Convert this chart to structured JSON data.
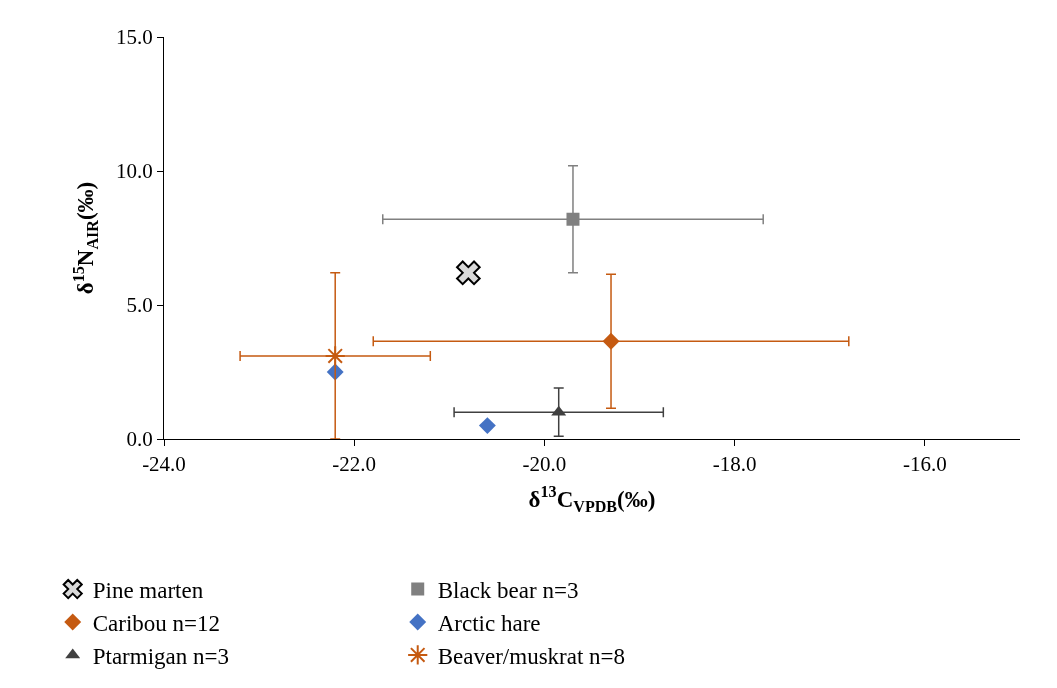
{
  "chart_data": {
    "type": "scatter",
    "xlabel": "δ$^{13}$C$_{VPDB}$(‰)",
    "ylabel": "δ$^{15}$N$_{AIR}$(‰)",
    "xlim": [
      -24,
      -15
    ],
    "xticks": [
      {
        "value": -24,
        "label": "-24.0"
      },
      {
        "value": -22,
        "label": "-22.0"
      },
      {
        "value": -20,
        "label": "-20.0"
      },
      {
        "value": -18,
        "label": "-18.0"
      },
      {
        "value": -16,
        "label": "-16.0"
      }
    ],
    "ylim": [
      0,
      15
    ],
    "yticks": [
      {
        "value": 0,
        "label": "0.0"
      },
      {
        "value": 5,
        "label": "5.0"
      },
      {
        "value": 10,
        "label": "10.0"
      },
      {
        "value": 15,
        "label": "15.0"
      }
    ],
    "grid": false,
    "legend": "bottom",
    "series": [
      {
        "name": "Pine marten",
        "color": "#d9d9d9",
        "marker": "cross",
        "x": [
          -20.8
        ],
        "values": [
          6.2
        ]
      },
      {
        "name": "Black bear n=3",
        "color": "#808080",
        "marker": "square",
        "x": [
          -19.7
        ],
        "values": [
          8.2
        ],
        "errors": [
          2.0
        ],
        "xerrors": [
          2.0
        ]
      },
      {
        "name": "Caribou n=12",
        "color": "#c55a11",
        "marker": "diamond",
        "x": [
          -19.3
        ],
        "values": [
          3.65
        ],
        "errors": [
          2.5
        ],
        "xerrors": [
          2.5
        ]
      },
      {
        "name": "Arctic hare",
        "color": "#4472c4",
        "marker": "diamond",
        "x": [
          -22.2,
          -20.6
        ],
        "values": [
          2.5,
          0.5
        ]
      },
      {
        "name": "Ptarmigan n=3",
        "color": "#404040",
        "marker": "triangle",
        "x": [
          -19.85
        ],
        "values": [
          1.0
        ],
        "errors": [
          0.9
        ],
        "xerrors": [
          1.1
        ]
      },
      {
        "name": "Beaver/muskrat n=8",
        "color": "#c55a11",
        "marker": "cross",
        "x": [
          -22.2
        ],
        "values": [
          3.1
        ],
        "errors": [
          3.1
        ],
        "xerrors": [
          1.0
        ]
      }
    ]
  }
}
